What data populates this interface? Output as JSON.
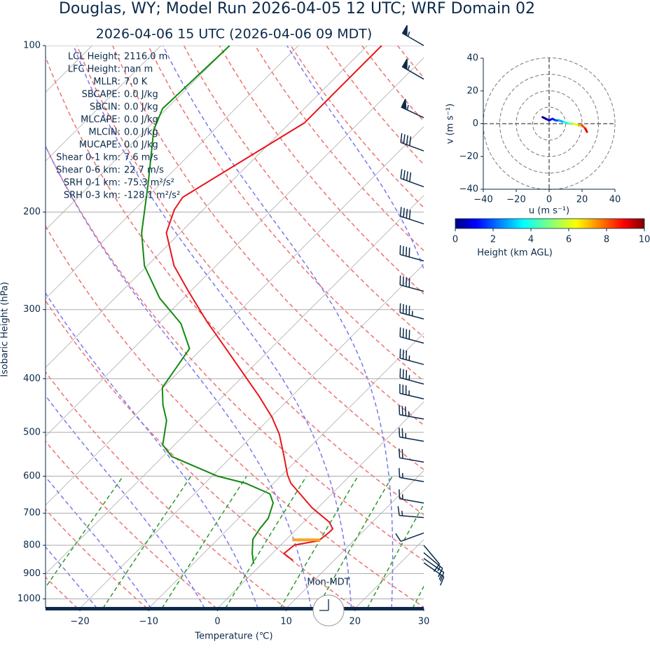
{
  "chart_data": [
    {
      "type": "skewt",
      "title": "Douglas, WY; Model Run 2026-04-05 12 UTC; WRF Domain 02",
      "subtitle": "2026-04-06 15 UTC  (2026-04-06 09 MDT)",
      "xlabel": "Temperature (℃)",
      "ylabel": "Isobaric Height (hPa)",
      "xlim": [
        -25,
        30
      ],
      "xticks": [
        {
          "value": -20,
          "label": "−20"
        },
        {
          "value": -10,
          "label": "−10"
        },
        0,
        10,
        20,
        30
      ],
      "ylim": [
        100,
        1040
      ],
      "yticks": [
        100,
        200,
        300,
        400,
        500,
        600,
        700,
        800,
        900,
        1000
      ],
      "log_y": true,
      "grid": true,
      "temperature": {
        "color": "#e8161b",
        "pressure": [
          852,
          828,
          799,
          785,
          758,
          747,
          726,
          684,
          618,
          597,
          550,
          504,
          469,
          430,
          388,
          350,
          316,
          277,
          250,
          218,
          198,
          188,
          138,
          100
        ],
        "values": [
          4.0,
          1.7,
          2.0,
          4.9,
          5.2,
          5.2,
          3.7,
          -0.9,
          -7.5,
          -9.2,
          -12.6,
          -16.3,
          -19.9,
          -24.8,
          -30.9,
          -37.0,
          -43.1,
          -50.5,
          -56.1,
          -62.0,
          -64.2,
          -64.8,
          -57.9,
          -57.9
        ]
      },
      "dewpoint": {
        "color": "#118a11",
        "pressure": [
          864,
          828,
          780,
          747,
          715,
          671,
          646,
          618,
          600,
          553,
          527,
          476,
          446,
          415,
          353,
          318,
          286,
          250,
          218,
          177,
          142,
          130,
          100
        ],
        "values": [
          -1.2,
          -2.9,
          -4.9,
          -5.4,
          -5.7,
          -7.2,
          -9.0,
          -14.1,
          -19.2,
          -28.7,
          -31.7,
          -34.7,
          -37.5,
          -40.1,
          -41.8,
          -46.7,
          -53.5,
          -60.4,
          -65.6,
          -71.9,
          -78.8,
          -80.6,
          -80.0
        ]
      },
      "lcl_marker": {
        "pressure": 782,
        "color": "#f5a623"
      },
      "wind_barbs": {
        "color": "#0b2a4a",
        "pressure": [
          100,
          115,
          135,
          155,
          180,
          210,
          245,
          278,
          312,
          345,
          377,
          409,
          435,
          473,
          519,
          566,
          614,
          671,
          713,
          760,
          800,
          825,
          845,
          860
        ],
        "speed": [
          55,
          55,
          55,
          40,
          40,
          40,
          40,
          40,
          45,
          40,
          35,
          35,
          35,
          35,
          25,
          20,
          15,
          15,
          15,
          10,
          10,
          15,
          15,
          15
        ],
        "direction": [
          300,
          300,
          295,
          290,
          290,
          288,
          285,
          285,
          285,
          285,
          285,
          285,
          283,
          280,
          280,
          280,
          280,
          280,
          275,
          250,
          140,
          130,
          125,
          125
        ]
      },
      "stats": [
        {
          "label": "LCL Height:",
          "value": "2116.0 m"
        },
        {
          "label": "LFC Height:",
          "value": "nan m"
        },
        {
          "label": "MLLR:",
          "value": "7.0 K"
        },
        {
          "label": "SBCAPE:",
          "value": "0.0 J/kg"
        },
        {
          "label": "SBCIN:",
          "value": "0.0 J/kg"
        },
        {
          "label": "MLCAPE:",
          "value": "0.0 J/kg"
        },
        {
          "label": "MLCIN:",
          "value": "0.0 J/kg"
        },
        {
          "label": "MUCAPE:",
          "value": "0.0 J/kg"
        },
        {
          "label": "Shear 0-1 km:",
          "value": "7.6 m/s"
        },
        {
          "label": "Shear 0-6 km:",
          "value": "22.7 m/s"
        },
        {
          "label": "SRH 0-1 km:",
          "value": "-75.3 m²/s²"
        },
        {
          "label": "SRH 0-3 km:",
          "value": "-128.1 m²/s²"
        }
      ],
      "timezone_label": "Mon-MDT"
    },
    {
      "type": "hodograph",
      "xlabel": "u (m s⁻¹)",
      "ylabel": "v (m s⁻¹)",
      "xlim": [
        -40,
        40
      ],
      "ylim": [
        -40,
        40
      ],
      "xticks": [
        {
          "value": -40,
          "label": "−40"
        },
        {
          "value": -20,
          "label": "−20"
        },
        0,
        20,
        40
      ],
      "yticks": [
        {
          "value": -40,
          "label": "−40"
        },
        {
          "value": -20,
          "label": "−20"
        },
        0,
        20,
        40
      ],
      "u": [
        -4,
        -2,
        0,
        2,
        4,
        6,
        9,
        12,
        15,
        18,
        20,
        22,
        23
      ],
      "v": [
        4,
        3,
        2,
        3,
        2,
        2,
        1,
        0,
        0,
        -1,
        -1,
        -3,
        -5
      ],
      "height": [
        0,
        0.5,
        1,
        1.5,
        2,
        3,
        4,
        5,
        6,
        7,
        8,
        9,
        10
      ],
      "colorbar": {
        "label": "Height (km AGL)",
        "lim": [
          0,
          10
        ],
        "ticks": [
          0,
          2,
          4,
          6,
          8,
          10
        ]
      }
    }
  ]
}
